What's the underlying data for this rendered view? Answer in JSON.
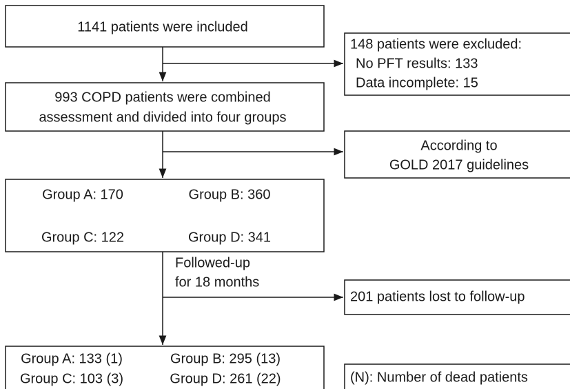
{
  "nodes": [
    {
      "lines": [
        "1141 patients were included"
      ]
    },
    {
      "lines": [
        "148 patients were excluded:",
        "No PFT results: 133",
        "Data incomplete: 15"
      ]
    },
    {
      "lines": [
        "993 COPD patients were combined",
        "assessment and divided into four groups"
      ]
    },
    {
      "lines": [
        "According to",
        "GOLD 2017 guidelines"
      ]
    },
    {
      "lines": [
        "Group A: 170",
        "Group B: 360",
        "Group C: 122",
        "Group D: 341"
      ]
    },
    {
      "lines": [
        "201 patients lost to follow-up"
      ]
    },
    {
      "lines": [
        "Group A: 133 (1)",
        "Group B: 295 (13)",
        "Group C: 103 (3)",
        "Group D: 261 (22)"
      ]
    },
    {
      "lines": [
        "(N): Number of dead patients"
      ]
    }
  ],
  "edge_labels": [
    "Followed-up",
    "for 18 months"
  ]
}
